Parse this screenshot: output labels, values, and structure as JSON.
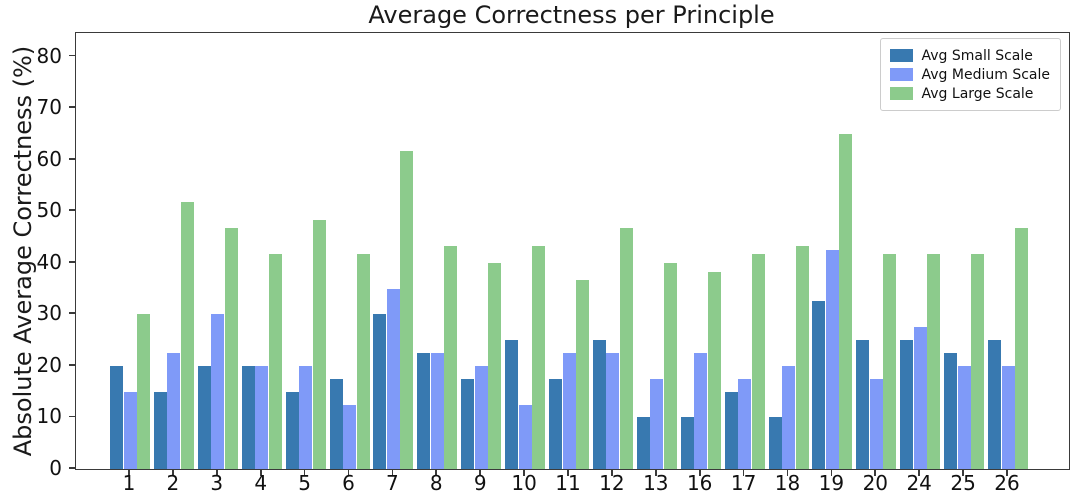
{
  "chart_data": {
    "type": "bar",
    "title": "Average Correctness per Principle",
    "xlabel": "",
    "ylabel": "Absolute Average Correctness (%)",
    "categories": [
      "1",
      "2",
      "3",
      "4",
      "5",
      "6",
      "7",
      "8",
      "9",
      "10",
      "11",
      "12",
      "13",
      "16",
      "17",
      "18",
      "19",
      "20",
      "24",
      "25",
      "26"
    ],
    "series": [
      {
        "name": "Avg Small Scale",
        "color": "#3879b0",
        "values": [
          20,
          15,
          20,
          20,
          15,
          17.5,
          30,
          22.5,
          17.5,
          25,
          17.5,
          25,
          10,
          10,
          15,
          10,
          32.5,
          25,
          25,
          22.5,
          25
        ]
      },
      {
        "name": "Avg Medium Scale",
        "color": "#7f9af8",
        "values": [
          15,
          22.5,
          30,
          20,
          20,
          12.5,
          35,
          22.5,
          20,
          12.5,
          22.5,
          22.5,
          17.5,
          22.5,
          17.5,
          20,
          42.5,
          17.5,
          27.5,
          20,
          20
        ]
      },
      {
        "name": "Avg Large Scale",
        "color": "#8ccb8c",
        "values": [
          30,
          51.7,
          46.7,
          41.7,
          48.3,
          41.7,
          61.7,
          43.3,
          40,
          43.3,
          36.7,
          46.7,
          40,
          38.3,
          41.7,
          43.3,
          65,
          41.7,
          41.7,
          41.7,
          46.7
        ]
      }
    ],
    "ylim": [
      0,
      84.5
    ],
    "yticks": [
      0,
      10,
      20,
      30,
      40,
      50,
      60,
      70,
      80
    ],
    "grid": false,
    "legend_position": "upper right"
  }
}
